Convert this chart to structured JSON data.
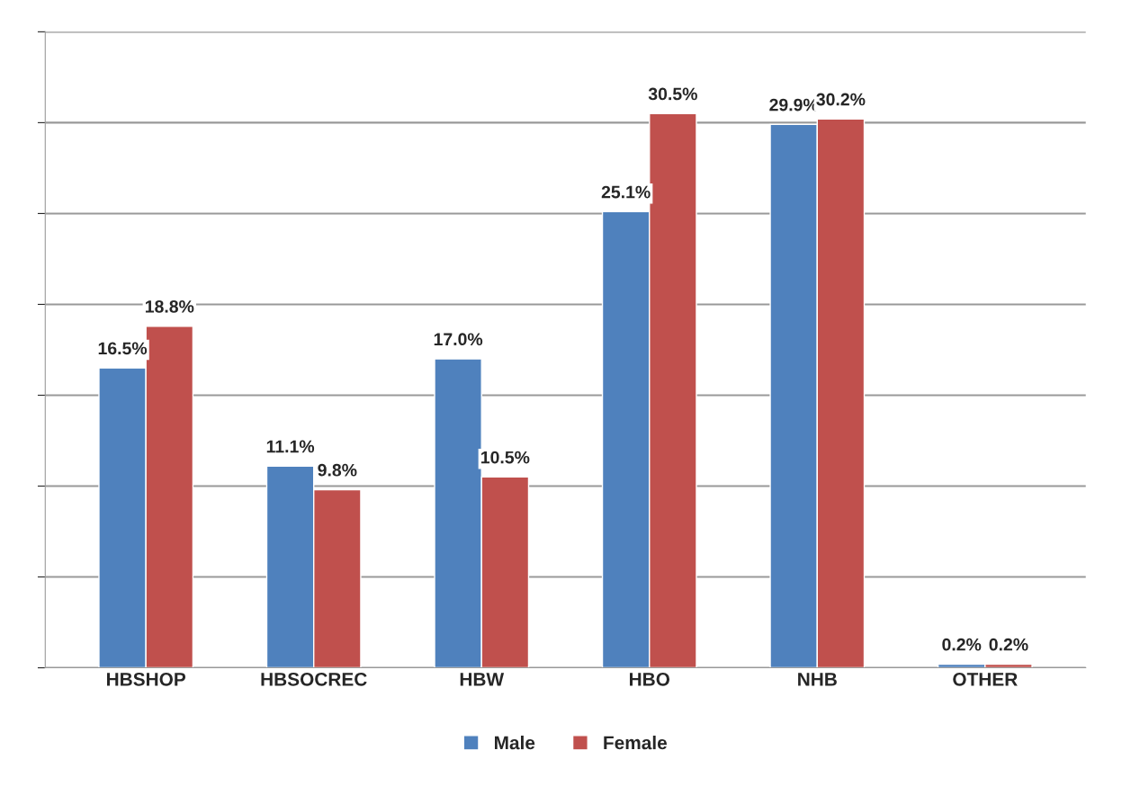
{
  "chart_data": {
    "type": "bar",
    "categories": [
      "HBSHOP",
      "HBSOCREC",
      "HBW",
      "HBO",
      "NHB",
      "OTHER"
    ],
    "series": [
      {
        "name": "Male",
        "color": "#4f81bd",
        "values": [
          16.5,
          11.1,
          17.0,
          25.1,
          29.9,
          0.2
        ],
        "value_labels": [
          "16.5%",
          "11.1%",
          "17.0%",
          "25.1%",
          "29.9%",
          "0.2%"
        ]
      },
      {
        "name": "Female",
        "color": "#c0504d",
        "values": [
          18.8,
          9.8,
          10.5,
          30.5,
          30.2,
          0.2
        ],
        "value_labels": [
          "18.8%",
          "9.8%",
          "10.5%",
          "30.5%",
          "30.2%",
          "0.2%"
        ]
      }
    ],
    "ylim": [
      0,
      35
    ],
    "yticks": [
      {
        "value": 0,
        "label": null
      },
      {
        "value": 5,
        "label": null
      },
      {
        "value": 10,
        "label": null
      },
      {
        "value": 15,
        "label": null
      },
      {
        "value": 20,
        "label": null
      },
      {
        "value": 25,
        "label": null
      },
      {
        "value": 30,
        "label": null
      },
      {
        "value": 35,
        "label": null
      }
    ],
    "grid": "y",
    "legend": "bottom",
    "tick_labels": "x"
  }
}
